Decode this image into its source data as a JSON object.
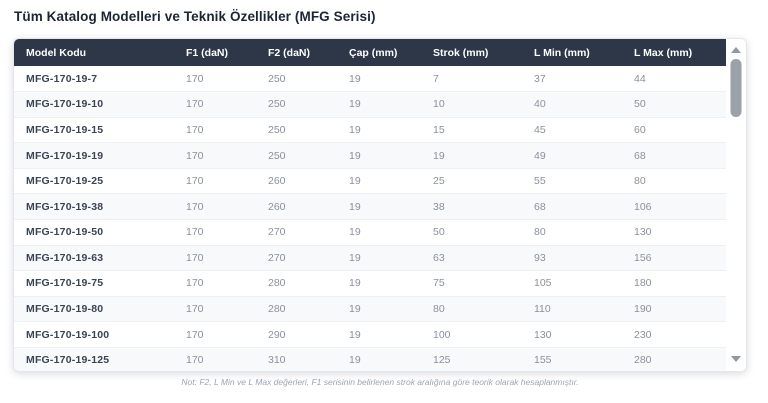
{
  "page": {
    "title": "Tüm Katalog Modelleri ve Teknik Özellikler (MFG Serisi)",
    "note": "Not: F2, L Min ve L Max değerleri, F1 serisinin belirlenen strok aralığına göre teorik olarak hesaplanmıştır."
  },
  "table": {
    "columns": [
      "Model Kodu",
      "F1 (daN)",
      "F2 (daN)",
      "Çap (mm)",
      "Strok (mm)",
      "L Min (mm)",
      "L Max (mm)"
    ],
    "rows": [
      [
        "MFG-170-19-7",
        "170",
        "250",
        "19",
        "7",
        "37",
        "44"
      ],
      [
        "MFG-170-19-10",
        "170",
        "250",
        "19",
        "10",
        "40",
        "50"
      ],
      [
        "MFG-170-19-15",
        "170",
        "250",
        "19",
        "15",
        "45",
        "60"
      ],
      [
        "MFG-170-19-19",
        "170",
        "250",
        "19",
        "19",
        "49",
        "68"
      ],
      [
        "MFG-170-19-25",
        "170",
        "260",
        "19",
        "25",
        "55",
        "80"
      ],
      [
        "MFG-170-19-38",
        "170",
        "260",
        "19",
        "38",
        "68",
        "106"
      ],
      [
        "MFG-170-19-50",
        "170",
        "270",
        "19",
        "50",
        "80",
        "130"
      ],
      [
        "MFG-170-19-63",
        "170",
        "270",
        "19",
        "63",
        "93",
        "156"
      ],
      [
        "MFG-170-19-75",
        "170",
        "280",
        "19",
        "75",
        "105",
        "180"
      ],
      [
        "MFG-170-19-80",
        "170",
        "280",
        "19",
        "80",
        "110",
        "190"
      ],
      [
        "MFG-170-19-100",
        "170",
        "290",
        "19",
        "100",
        "130",
        "230"
      ],
      [
        "MFG-170-19-125",
        "170",
        "310",
        "19",
        "125",
        "155",
        "280"
      ]
    ]
  },
  "scrollbar": {
    "up_icon": "triangle-up",
    "down_icon": "triangle-down",
    "thumb": "scroll-thumb"
  },
  "colors": {
    "header_bg": "#2d3748",
    "header_text": "#ffffff",
    "row_alt_bg": "#f7f9fb",
    "row_border": "#edf0f3",
    "model_text": "#3a4454",
    "value_text": "#8a919d",
    "title_text": "#1c2534",
    "note_text": "#9ba4b1",
    "scroll_thumb": "#9aa1a9"
  }
}
